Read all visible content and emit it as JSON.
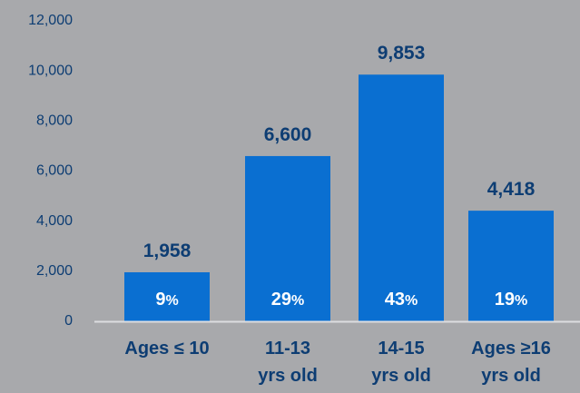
{
  "chart_data": {
    "type": "bar",
    "categories": [
      [
        "Ages ≤ 10"
      ],
      [
        "11-13",
        "yrs old"
      ],
      [
        "14-15",
        "yrs old"
      ],
      [
        "Ages ≥16",
        "yrs old"
      ]
    ],
    "values": [
      1958,
      6600,
      9853,
      4418
    ],
    "value_labels": [
      "1,958",
      "6,600",
      "9,853",
      "4,418"
    ],
    "percent_labels": [
      "9",
      "29",
      "43",
      "19"
    ],
    "percent_sign": "%",
    "ylim": [
      0,
      12000
    ],
    "yticks": [
      "0",
      "2,000",
      "4,000",
      "6,000",
      "8,000",
      "10,000",
      "12,000"
    ],
    "title": "",
    "xlabel": "",
    "ylabel": "",
    "grid": false,
    "legend": "none",
    "colors": {
      "bar": "#0a6fd1",
      "text": "#0d3d73",
      "baseline": "#dcdde0",
      "background": "#a8a9ac"
    }
  }
}
